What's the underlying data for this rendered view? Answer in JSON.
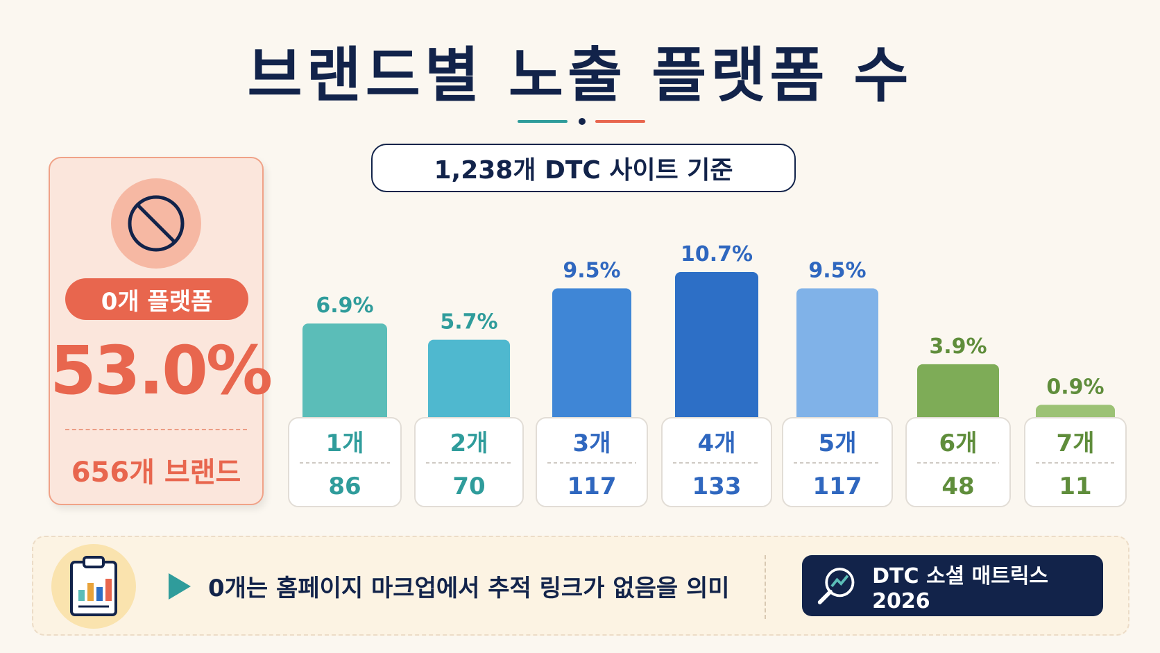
{
  "title": "브랜드별 노출 플랫폼 수",
  "subtitle": "1,238개 DTC 사이트 기준",
  "zero_group": {
    "icon": "no-entry-icon",
    "label": "0개 플랫폼",
    "percent": "53.0%",
    "count": "656개 브랜드"
  },
  "chart_data": {
    "type": "bar",
    "categories": [
      "1개",
      "2개",
      "3개",
      "4개",
      "5개",
      "6개",
      "7개"
    ],
    "values": [
      6.9,
      5.7,
      9.5,
      10.7,
      9.5,
      3.9,
      0.9
    ],
    "value_labels": [
      "6.9%",
      "5.7%",
      "9.5%",
      "10.7%",
      "9.5%",
      "3.9%",
      "0.9%"
    ],
    "counts": [
      "86",
      "70",
      "117",
      "133",
      "117",
      "48",
      "11"
    ],
    "colors": [
      "#5bbdb8",
      "#4fb8cf",
      "#3f86d6",
      "#2d6fc6",
      "#80b2e8",
      "#7eac57",
      "#9cc275"
    ],
    "label_colors": [
      "#2f9c9b",
      "#2f9c9b",
      "#2f67bf",
      "#2f67bf",
      "#2f67bf",
      "#5f8d3b",
      "#5f8d3b"
    ],
    "title": "브랜드별 노출 플랫폼 수",
    "xlabel": "",
    "ylabel": "",
    "ylim": [
      0,
      10.7
    ],
    "grid": false
  },
  "footer": {
    "icon": "clipboard-chart-icon",
    "arrow_icon": "play-arrow-icon",
    "note": "0개는 홈페이지 마크업에서 추적 링크가 없음을 의미",
    "badge_icon": "trend-magnifier-icon",
    "badge": "DTC 소셜 매트릭스 2026"
  },
  "colors": {
    "navy": "#12234a",
    "coral": "#e8664e",
    "teal": "#2f9c9b",
    "background": "#fbf7f0"
  }
}
